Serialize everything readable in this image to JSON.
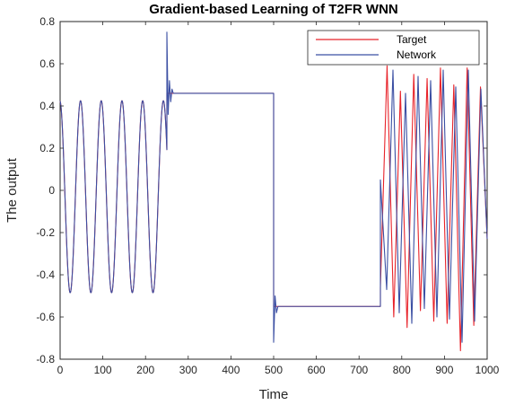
{
  "chart_data": {
    "type": "line",
    "title": "Gradient-based Learning of T2FR WNN",
    "xlabel": "Time",
    "ylabel": "The output",
    "xlim": [
      0,
      1000
    ],
    "ylim": [
      -0.8,
      0.8
    ],
    "xticks": [
      "0",
      "100",
      "200",
      "300",
      "400",
      "500",
      "600",
      "700",
      "800",
      "900",
      "1000"
    ],
    "yticks": [
      "-0.8",
      "-0.6",
      "-0.4",
      "-0.2",
      "0",
      "0.2",
      "0.4",
      "0.6",
      "0.8"
    ],
    "grid": false,
    "legend_position": "top-right",
    "series": [
      {
        "name": "Target",
        "color": "#e8232a",
        "segments": [
          {
            "type": "sine",
            "x_range": [
              0,
              250
            ],
            "amplitude": 0.455,
            "offset": -0.03,
            "period": 48.5,
            "phase_deg": 95
          },
          {
            "type": "constant",
            "x_range": [
              250,
              500
            ],
            "value": 0.46
          },
          {
            "type": "constant",
            "x_range": [
              500,
              750
            ],
            "value": -0.55
          },
          {
            "type": "oscillation",
            "x_range": [
              750,
              1000
            ],
            "peak_values": [
              -0.46,
              0.59,
              -0.6,
              0.47,
              -0.65,
              0.55,
              -0.57,
              0.53,
              -0.62,
              0.58,
              -0.63,
              0.5,
              -0.76,
              0.58,
              -0.64,
              0.49,
              -0.23
            ]
          }
        ]
      },
      {
        "name": "Network",
        "color": "#3b4fa3",
        "segments": [
          {
            "type": "sine",
            "x_range": [
              0,
              250
            ],
            "amplitude": 0.455,
            "offset": -0.03,
            "period": 48.5,
            "phase_deg": 95
          },
          {
            "type": "transient",
            "x_range": [
              250,
              265
            ],
            "values": [
              0.75,
              0.36,
              0.52,
              0.42,
              0.48,
              0.46
            ]
          },
          {
            "type": "constant",
            "x_range": [
              265,
              500
            ],
            "value": 0.46
          },
          {
            "type": "transient",
            "x_range": [
              500,
              510
            ],
            "values": [
              -0.72,
              -0.5,
              -0.58,
              -0.55
            ]
          },
          {
            "type": "constant",
            "x_range": [
              510,
              750
            ],
            "value": -0.55
          },
          {
            "type": "oscillation",
            "x_range": [
              750,
              1000
            ],
            "peak_values": [
              0.05,
              -0.47,
              0.57,
              -0.58,
              0.46,
              -0.63,
              0.54,
              -0.56,
              0.52,
              -0.6,
              0.57,
              -0.61,
              0.49,
              -0.72,
              0.57,
              -0.62,
              0.48,
              -0.23
            ]
          }
        ]
      }
    ]
  }
}
